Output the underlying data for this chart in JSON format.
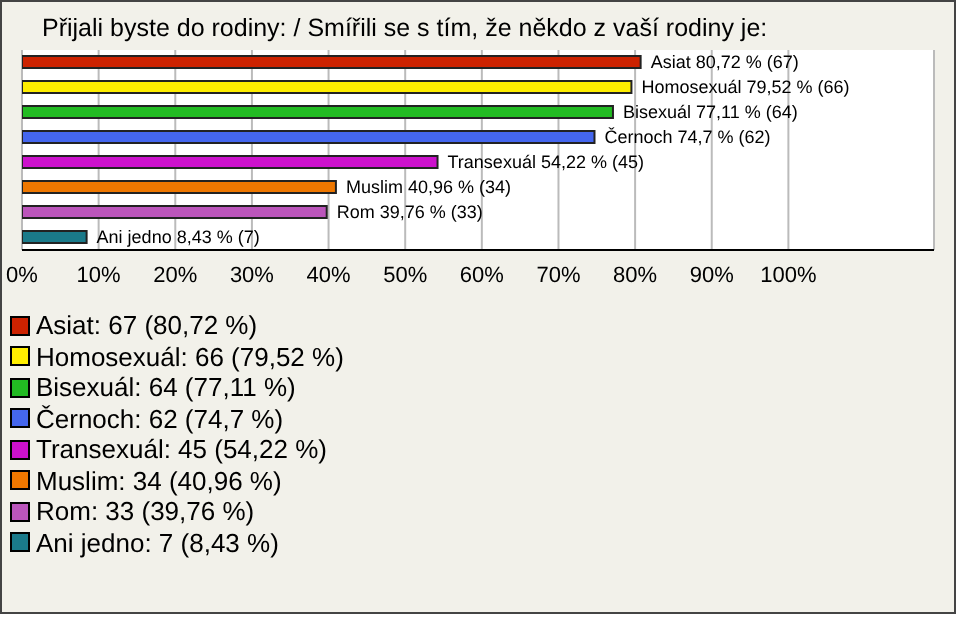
{
  "chart_data": {
    "type": "bar",
    "orientation": "horizontal",
    "title": "Přijali byste do rodiny: / Smířili se s tím, že někdo z vaší rodiny je:",
    "categories": [
      "Asiat",
      "Homosexuál",
      "Bisexuál",
      "Černoch",
      "Transexuál",
      "Muslim",
      "Rom",
      "Ani jedno"
    ],
    "values": [
      80.72,
      79.52,
      77.11,
      74.7,
      54.22,
      40.96,
      39.76,
      8.43
    ],
    "colors": [
      "#cc2200",
      "#ffee00",
      "#22bb22",
      "#4466ee",
      "#cc11cc",
      "#ee7700",
      "#bb55bb",
      "#1a7a8a"
    ],
    "value_labels": [
      "80,72 % (67)",
      "79,52 % (66)",
      "77,11 % (64)",
      "74,7 % (62)",
      "54,22 % (45)",
      "40,96 % (34)",
      "39,76 % (33)",
      "8,43 % (7)"
    ],
    "xlim": [
      0,
      119
    ],
    "xticks": [
      {
        "value": 0,
        "label": "0%"
      },
      {
        "value": 10,
        "label": "10%"
      },
      {
        "value": 20,
        "label": "20%"
      },
      {
        "value": 30,
        "label": "30%"
      },
      {
        "value": 40,
        "label": "40%"
      },
      {
        "value": 50,
        "label": "50%"
      },
      {
        "value": 60,
        "label": "60%"
      },
      {
        "value": 70,
        "label": "70%"
      },
      {
        "value": 80,
        "label": "80%"
      },
      {
        "value": 90,
        "label": "90%"
      },
      {
        "value": 100,
        "label": "100%"
      }
    ],
    "grid": "x",
    "tick_labels": "x",
    "annotations": [
      "Asiat: 67 (80,72 %)",
      "Homosexuál: 66 (79,52 %)",
      "Bisexuál: 64 (77,11 %)",
      "Černoch: 62 (74,7 %)",
      "Transexuál: 45 (54,22 %)",
      "Muslim: 34 (40,96 %)",
      "Rom: 33 (39,76 %)",
      "Ani jedno: 7 (8,43 %)"
    ]
  }
}
